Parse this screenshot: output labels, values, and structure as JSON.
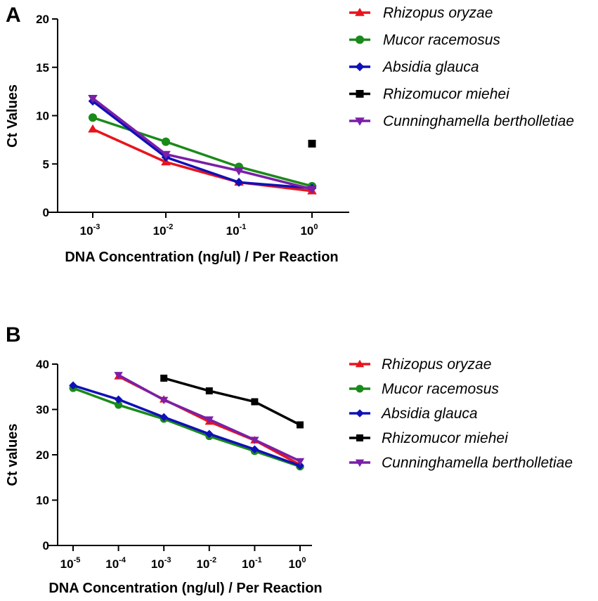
{
  "chart_data": [
    {
      "panel_label": "A",
      "type": "line",
      "xlabel": "DNA Concentration (ng/ul) / Per Reaction",
      "ylabel": "Ct Values",
      "x_scale": "log10",
      "x_ticks": [
        {
          "value": 0.001,
          "base": "10",
          "exp": "-3"
        },
        {
          "value": 0.01,
          "base": "10",
          "exp": "-2"
        },
        {
          "value": 0.1,
          "base": "10",
          "exp": "-1"
        },
        {
          "value": 1,
          "base": "10",
          "exp": "0"
        }
      ],
      "y_ticks": [
        "0",
        "5",
        "10",
        "15",
        "20"
      ],
      "ylim": [
        0,
        20
      ],
      "legend_position": "right",
      "series": [
        {
          "name": "Rhizopus oryzae",
          "color": "#e8141c",
          "marker": "triangle-up",
          "x": [
            0.001,
            0.01,
            0.1,
            1
          ],
          "y": [
            8.6,
            5.2,
            3.1,
            2.2
          ]
        },
        {
          "name": "Mucor racemosus",
          "color": "#1a8a1a",
          "marker": "circle",
          "x": [
            0.001,
            0.01,
            0.1,
            1
          ],
          "y": [
            9.8,
            7.3,
            4.7,
            2.7
          ]
        },
        {
          "name": "Absidia glauca",
          "color": "#1010b8",
          "marker": "diamond",
          "x": [
            0.001,
            0.01,
            0.1,
            1
          ],
          "y": [
            11.5,
            5.7,
            3.1,
            2.5
          ]
        },
        {
          "name": "Rhizomucor miehei",
          "color": "#000000",
          "marker": "square",
          "x": [
            1
          ],
          "y": [
            7.1
          ]
        },
        {
          "name": "Cunninghamella bertholletiae",
          "color": "#7a1fa8",
          "marker": "triangle-down",
          "x": [
            0.001,
            0.01,
            0.1,
            1
          ],
          "y": [
            11.8,
            6.0,
            4.3,
            2.4
          ]
        }
      ]
    },
    {
      "panel_label": "B",
      "type": "line",
      "xlabel": "DNA Concentration (ng/ul) / Per Reaction",
      "ylabel": "Ct values",
      "x_scale": "log10",
      "x_ticks": [
        {
          "value": 1e-05,
          "base": "10",
          "exp": "-5"
        },
        {
          "value": 0.0001,
          "base": "10",
          "exp": "-4"
        },
        {
          "value": 0.001,
          "base": "10",
          "exp": "-3"
        },
        {
          "value": 0.01,
          "base": "10",
          "exp": "-2"
        },
        {
          "value": 0.1,
          "base": "10",
          "exp": "-1"
        },
        {
          "value": 1,
          "base": "10",
          "exp": "0"
        }
      ],
      "y_ticks": [
        "0",
        "10",
        "20",
        "30",
        "40"
      ],
      "ylim": [
        0,
        40
      ],
      "legend_position": "right",
      "series": [
        {
          "name": "Rhizopus oryzae",
          "color": "#e8141c",
          "marker": "triangle-up",
          "x": [
            0.0001,
            0.001,
            0.01,
            0.1,
            1
          ],
          "y": [
            37.3,
            32.2,
            27.3,
            23.2,
            17.8
          ]
        },
        {
          "name": "Mucor racemosus",
          "color": "#1a8a1a",
          "marker": "circle",
          "x": [
            1e-05,
            0.0001,
            0.001,
            0.01,
            0.1,
            1
          ],
          "y": [
            34.7,
            31.0,
            27.9,
            24.1,
            20.8,
            17.4
          ]
        },
        {
          "name": "Absidia glauca",
          "color": "#1010b8",
          "marker": "diamond",
          "x": [
            1e-05,
            0.0001,
            0.001,
            0.01,
            0.1,
            1
          ],
          "y": [
            35.3,
            32.2,
            28.3,
            24.6,
            21.2,
            17.6
          ]
        },
        {
          "name": "Rhizomucor miehei",
          "color": "#000000",
          "marker": "square",
          "x": [
            0.001,
            0.01,
            0.1,
            1
          ],
          "y": [
            36.9,
            34.1,
            31.7,
            26.6
          ]
        },
        {
          "name": "Cunninghamella bertholletiae",
          "color": "#7a1fa8",
          "marker": "triangle-down",
          "x": [
            0.0001,
            0.001,
            0.01,
            0.1,
            1
          ],
          "y": [
            37.6,
            32.1,
            27.8,
            23.3,
            18.6
          ]
        }
      ]
    }
  ]
}
